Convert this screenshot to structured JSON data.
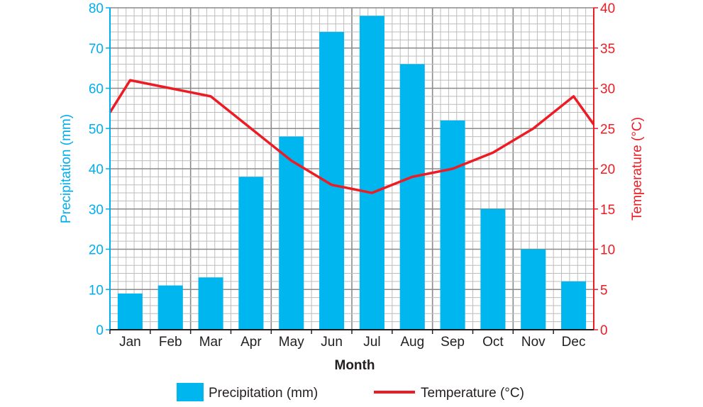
{
  "chart_data": {
    "type": "bar+line",
    "categories": [
      "Jan",
      "Feb",
      "Mar",
      "Apr",
      "May",
      "Jun",
      "Jul",
      "Aug",
      "Sep",
      "Oct",
      "Nov",
      "Dec"
    ],
    "series": [
      {
        "name": "Precipitation (mm)",
        "type": "bar",
        "axis": "left",
        "color": "#00b6ef",
        "values": [
          9,
          11,
          13,
          38,
          48,
          74,
          78,
          66,
          52,
          30,
          20,
          12
        ]
      },
      {
        "name": "Temperature (°C)",
        "type": "line",
        "axis": "right",
        "color": "#ed1c24",
        "values": [
          31,
          30,
          29,
          25,
          21,
          18,
          17,
          19,
          20,
          22,
          25,
          29
        ],
        "edge_values": [
          27,
          25.5
        ]
      }
    ],
    "xlabel": "Month",
    "ylabel": "Precipitation (mm)",
    "y2label": "Temperature (°C)",
    "ylim": [
      0,
      80
    ],
    "y2lim": [
      0,
      40
    ],
    "yticks": [
      "0",
      "10",
      "20",
      "30",
      "40",
      "50",
      "60",
      "70",
      "80"
    ],
    "y2ticks": [
      "0",
      "5",
      "10",
      "15",
      "20",
      "25",
      "30",
      "35",
      "40"
    ],
    "grid": true,
    "legend": "bottom"
  }
}
